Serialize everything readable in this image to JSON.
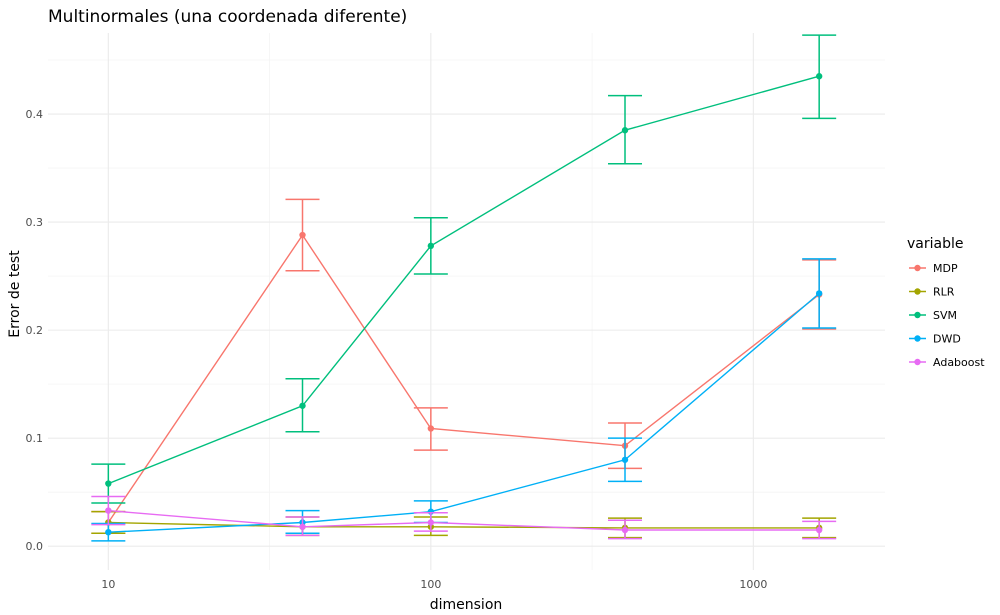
{
  "chart_data": {
    "type": "line",
    "title": "Multinormales (una coordenada diferente)",
    "xlabel": "dimension",
    "ylabel": "Error de test",
    "x_scale": "log10",
    "x": [
      10,
      40,
      100,
      400,
      1600
    ],
    "xlim": [
      6.5,
      2560
    ],
    "ylim": [
      -0.022,
      0.475
    ],
    "x_ticks": [
      10,
      100,
      1000
    ],
    "x_tick_labels": [
      "10",
      "100",
      "1000"
    ],
    "y_ticks": [
      0.0,
      0.1,
      0.2,
      0.3,
      0.4
    ],
    "y_tick_labels": [
      "0.0",
      "0.1",
      "0.2",
      "0.3",
      "0.4"
    ],
    "grid": true,
    "legend": {
      "title": "variable",
      "position": "right"
    },
    "series": [
      {
        "name": "MDP",
        "color": "#F8766D",
        "values": [
          0.022,
          0.288,
          0.109,
          0.093,
          0.233
        ],
        "lower": [
          0.012,
          0.255,
          0.089,
          0.072,
          0.201
        ],
        "upper": [
          0.032,
          0.321,
          0.128,
          0.114,
          0.265
        ]
      },
      {
        "name": "RLR",
        "color": "#A3A500",
        "values": [
          0.022,
          0.018,
          0.018,
          0.017,
          0.017
        ],
        "lower": [
          0.012,
          0.01,
          0.01,
          0.008,
          0.008
        ],
        "upper": [
          0.032,
          0.027,
          0.027,
          0.026,
          0.026
        ]
      },
      {
        "name": "SVM",
        "color": "#00BF7D",
        "values": [
          0.058,
          0.13,
          0.278,
          0.385,
          0.435
        ],
        "lower": [
          0.04,
          0.106,
          0.252,
          0.354,
          0.396
        ],
        "upper": [
          0.076,
          0.155,
          0.304,
          0.417,
          0.473
        ]
      },
      {
        "name": "DWD",
        "color": "#00B0F6",
        "values": [
          0.013,
          0.022,
          0.032,
          0.08,
          0.234
        ],
        "lower": [
          0.005,
          0.012,
          0.022,
          0.06,
          0.202
        ],
        "upper": [
          0.021,
          0.033,
          0.042,
          0.1,
          0.266
        ]
      },
      {
        "name": "Adaboost",
        "color": "#E76BF3",
        "values": [
          0.033,
          0.018,
          0.022,
          0.015,
          0.015
        ],
        "lower": [
          0.02,
          0.01,
          0.014,
          0.007,
          0.007
        ],
        "upper": [
          0.046,
          0.027,
          0.031,
          0.024,
          0.023
        ]
      }
    ]
  }
}
